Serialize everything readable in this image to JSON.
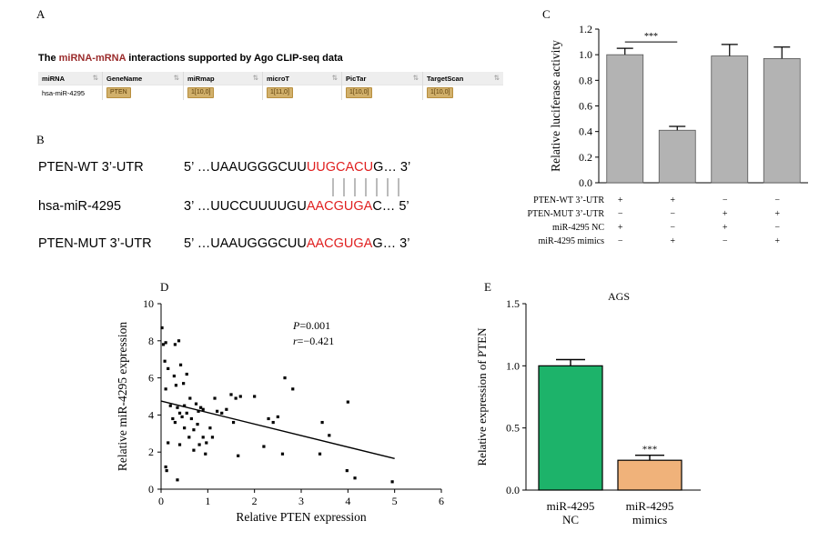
{
  "panels": {
    "a": {
      "label": "A"
    },
    "b": {
      "label": "B"
    },
    "c": {
      "label": "C"
    },
    "d": {
      "label": "D"
    },
    "e": {
      "label": "E"
    }
  },
  "panel_a": {
    "title_pre": "The ",
    "title_highlight": "miRNA-mRNA",
    "title_post": " interactions supported by Ago CLIP-seq data",
    "headers": [
      "miRNA",
      "GeneName",
      "miRmap",
      "microT",
      "PicTar",
      "TargetScan"
    ],
    "sort_glyph": "⇅",
    "row": {
      "mirna": "hsa-miR-4295",
      "gene": "PTEN",
      "mirmap": "1[10,0]",
      "microt": "1[11,0]",
      "pictar": "1[10,0]",
      "targetscan": "1[10,0]"
    }
  },
  "panel_b": {
    "wt": {
      "name": "PTEN-WT 3’-UTR",
      "prefix": "5’ …UAAUGGGCUU",
      "site": "UUGCACU",
      "suffix": "G… 3’"
    },
    "mir": {
      "name": "hsa-miR-4295",
      "prefix": "3’ …UUCCUUUUGU",
      "site": "AACGUGA",
      "suffix": "C… 5’"
    },
    "mut": {
      "name": "PTEN-MUT 3’-UTR",
      "prefix": "5’ …UAAUGGGCUU",
      "site": "AACGUGA",
      "suffix": "G… 3’"
    }
  },
  "colors": {
    "gray_bar": "#b3b3b3",
    "green_bar": "#1db36a",
    "orange_bar": "#f0b27a",
    "site_red": "#e02020"
  },
  "chart_data": [
    {
      "id": "C",
      "type": "bar",
      "ylabel": "Relative luciferase activity",
      "ylim": [
        0,
        1.2
      ],
      "yticks": [
        "0.0",
        "0.2",
        "0.4",
        "0.6",
        "0.8",
        "1.0",
        "1.2"
      ],
      "values": [
        1.0,
        0.41,
        0.99,
        0.97
      ],
      "errors": [
        0.05,
        0.03,
        0.09,
        0.09
      ],
      "significance": "***",
      "conditions": [
        {
          "label": "PTEN-WT 3’-UTR",
          "signs": [
            "+",
            "+",
            "−",
            "−"
          ]
        },
        {
          "label": "PTEN-MUT 3’-UTR",
          "signs": [
            "−",
            "−",
            "+",
            "+"
          ]
        },
        {
          "label": "miR-4295 NC",
          "signs": [
            "+",
            "−",
            "+",
            "−"
          ]
        },
        {
          "label": "miR-4295 mimics",
          "signs": [
            "−",
            "+",
            "−",
            "+"
          ]
        }
      ]
    },
    {
      "id": "D",
      "type": "scatter",
      "xlabel": "Relative PTEN expression",
      "ylabel": "Relative miR-4295 expression",
      "xlim": [
        0,
        6
      ],
      "ylim": [
        0,
        10
      ],
      "xticks": [
        "0",
        "1",
        "2",
        "3",
        "4",
        "5",
        "6"
      ],
      "yticks": [
        "0",
        "2",
        "4",
        "6",
        "8",
        "10"
      ],
      "annotation_p_symbol": "P",
      "annotation_p_value": "=0.001",
      "annotation_r_symbol": "r",
      "annotation_r_value": "=−0.421",
      "trend": {
        "x": [
          0,
          5
        ],
        "y": [
          4.75,
          1.65
        ]
      },
      "points": [
        [
          0.02,
          8.7
        ],
        [
          0.05,
          7.8
        ],
        [
          0.1,
          7.9
        ],
        [
          0.08,
          6.9
        ],
        [
          0.3,
          7.8
        ],
        [
          0.38,
          8.0
        ],
        [
          0.15,
          6.5
        ],
        [
          0.42,
          6.7
        ],
        [
          0.55,
          6.2
        ],
        [
          0.28,
          6.1
        ],
        [
          0.1,
          5.4
        ],
        [
          0.32,
          5.6
        ],
        [
          0.48,
          5.7
        ],
        [
          0.2,
          4.5
        ],
        [
          0.35,
          4.4
        ],
        [
          0.5,
          4.5
        ],
        [
          0.62,
          4.9
        ],
        [
          0.75,
          4.6
        ],
        [
          0.85,
          4.4
        ],
        [
          0.25,
          3.8
        ],
        [
          0.4,
          4.1
        ],
        [
          0.45,
          3.9
        ],
        [
          0.55,
          4.1
        ],
        [
          0.65,
          3.8
        ],
        [
          0.3,
          3.6
        ],
        [
          0.5,
          3.3
        ],
        [
          0.7,
          3.2
        ],
        [
          0.8,
          4.2
        ],
        [
          0.9,
          4.3
        ],
        [
          0.78,
          3.5
        ],
        [
          0.6,
          2.8
        ],
        [
          0.9,
          2.8
        ],
        [
          0.97,
          2.5
        ],
        [
          0.82,
          2.4
        ],
        [
          0.7,
          2.1
        ],
        [
          0.4,
          2.4
        ],
        [
          0.15,
          2.5
        ],
        [
          0.95,
          1.9
        ],
        [
          1.05,
          3.3
        ],
        [
          1.1,
          2.8
        ],
        [
          1.2,
          4.2
        ],
        [
          1.15,
          4.9
        ],
        [
          1.3,
          4.1
        ],
        [
          1.4,
          4.3
        ],
        [
          1.5,
          5.1
        ],
        [
          1.6,
          4.9
        ],
        [
          1.7,
          5.0
        ],
        [
          1.55,
          3.6
        ],
        [
          1.65,
          1.8
        ],
        [
          2.0,
          5.0
        ],
        [
          2.2,
          2.3
        ],
        [
          2.3,
          3.8
        ],
        [
          2.4,
          3.6
        ],
        [
          2.5,
          3.9
        ],
        [
          2.65,
          6.0
        ],
        [
          2.82,
          5.4
        ],
        [
          2.6,
          1.9
        ],
        [
          3.4,
          1.9
        ],
        [
          3.45,
          3.6
        ],
        [
          3.6,
          2.9
        ],
        [
          4.0,
          4.7
        ],
        [
          3.98,
          1.0
        ],
        [
          4.15,
          0.6
        ],
        [
          4.95,
          0.4
        ],
        [
          0.1,
          1.2
        ],
        [
          0.12,
          1.0
        ],
        [
          0.35,
          0.5
        ]
      ]
    },
    {
      "id": "E",
      "type": "bar",
      "title": "AGS",
      "ylabel": "Relative expression of PTEN",
      "ylim": [
        0,
        1.5
      ],
      "yticks": [
        "0.0",
        "0.5",
        "1.0",
        "1.5"
      ],
      "categories": [
        {
          "line1": "miR-4295",
          "line2": "NC"
        },
        {
          "line1": "miR-4295",
          "line2": "mimics"
        }
      ],
      "values": [
        1.0,
        0.24
      ],
      "errors": [
        0.05,
        0.04
      ],
      "significance": [
        "",
        "***"
      ]
    }
  ]
}
